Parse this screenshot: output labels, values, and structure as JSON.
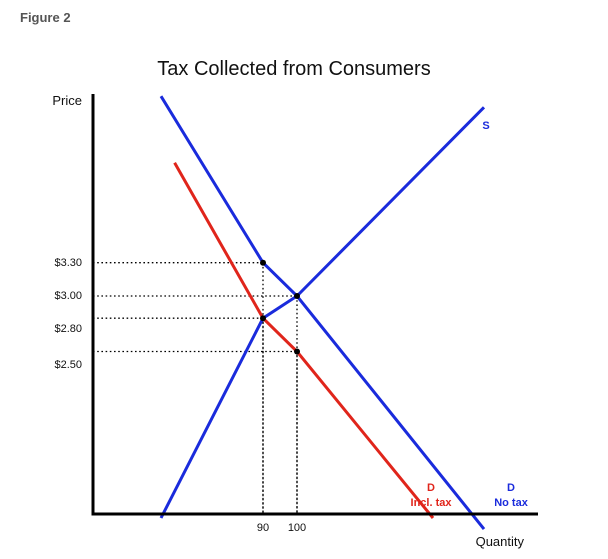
{
  "figure_label": "Figure 2",
  "colors": {
    "axis": "#000000",
    "supply": "#1a2bdc",
    "demand_no_tax": "#1a2bdc",
    "demand_incl_tax": "#e0251b",
    "guide": "#000000"
  },
  "chart_data": {
    "type": "line",
    "title": "Tax Collected from Consumers",
    "xlabel": "Quantity",
    "ylabel": "Price",
    "x_ticks": [
      "90",
      "100"
    ],
    "y_ticks": [
      "$3.30",
      "$3.00",
      "$2.80",
      "$2.50"
    ],
    "series": [
      {
        "name": "S",
        "color": "#1a2bdc",
        "points": [
          [
            60,
            1.0
          ],
          [
            90,
            2.8
          ],
          [
            100,
            3.0
          ],
          [
            155,
            4.7
          ]
        ]
      },
      {
        "name": "D",
        "sublabel": "No tax",
        "color": "#1a2bdc",
        "points": [
          [
            60,
            4.8
          ],
          [
            90,
            3.3
          ],
          [
            100,
            3.0
          ],
          [
            155,
            0.9
          ]
        ]
      },
      {
        "name": "D",
        "sublabel": "Incl. tax",
        "color": "#e0251b",
        "points": [
          [
            64,
            4.2
          ],
          [
            90,
            2.8
          ],
          [
            100,
            2.5
          ],
          [
            140,
            1.0
          ]
        ]
      }
    ],
    "guide_points": [
      {
        "q": 90,
        "p": 3.3
      },
      {
        "q": 100,
        "p": 3.0
      },
      {
        "q": 90,
        "p": 2.8
      },
      {
        "q": 100,
        "p": 2.5
      }
    ],
    "grid": false
  }
}
